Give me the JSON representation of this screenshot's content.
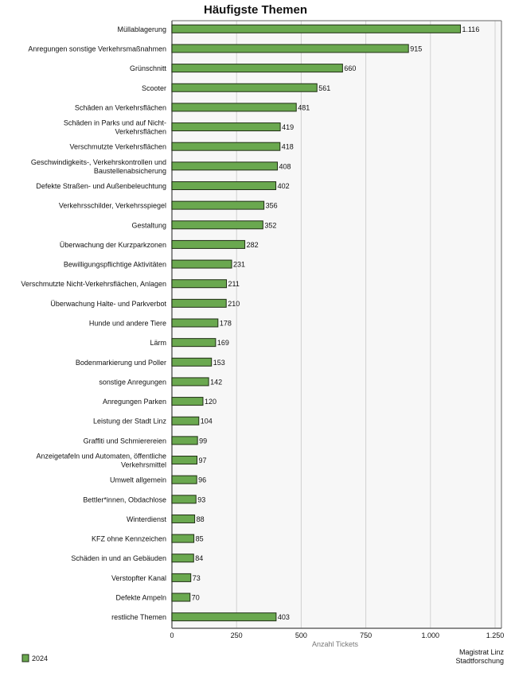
{
  "chart_data": {
    "type": "bar",
    "orientation": "horizontal",
    "title": "Häufigste Themen",
    "xlabel": "Anzahl Tickets",
    "ylabel": "",
    "xlim": [
      0,
      1250
    ],
    "xticks": [
      0,
      250,
      500,
      750,
      1000,
      1250
    ],
    "xtick_labels": [
      "0",
      "250",
      "500",
      "750",
      "1.000",
      "1.250"
    ],
    "grid": true,
    "legend_placement": "bottom-left",
    "color": "#6aa84f",
    "categories": [
      "Müllablagerung",
      "Anregungen sonstige Verkehrsmaßnahmen",
      "Grünschnitt",
      "Scooter",
      "Schäden an Verkehrsflächen",
      "Schäden in Parks und auf Nicht-|Verkehrsflächen",
      "Verschmutzte Verkehrsflächen",
      "Geschwindigkeits-, Verkehrskontrollen und|Baustellenabsicherung",
      "Defekte Straßen- und Außenbeleuchtung",
      "Verkehrsschilder, Verkehrsspiegel",
      "Gestaltung",
      "Überwachung der Kurzparkzonen",
      "Bewilligungspflichtige Aktivitäten",
      "Verschmutzte Nicht-Verkehrsflächen, Anlagen",
      "Überwachung Halte- und Parkverbot",
      "Hunde und andere Tiere",
      "Lärm",
      "Bodenmarkierung und Poller",
      "sonstige Anregungen",
      "Anregungen Parken",
      "Leistung der Stadt Linz",
      "Graffiti und Schmierereien",
      "Anzeigetafeln und Automaten, öffentliche|Verkehrsmittel",
      "Umwelt allgemein",
      "Bettler*innen, Obdachlose",
      "Winterdienst",
      "KFZ ohne Kennzeichen",
      "Schäden in und an Gebäuden",
      "Verstopfter Kanal",
      "Defekte Ampeln",
      "restliche Themen"
    ],
    "series": [
      {
        "name": "2024",
        "values": [
          1116,
          915,
          660,
          561,
          481,
          419,
          418,
          408,
          402,
          356,
          352,
          282,
          231,
          211,
          210,
          178,
          169,
          153,
          142,
          120,
          104,
          99,
          97,
          96,
          93,
          88,
          85,
          84,
          73,
          70,
          403
        ],
        "labels": [
          "1.116",
          "915",
          "660",
          "561",
          "481",
          "419",
          "418",
          "408",
          "402",
          "356",
          "352",
          "282",
          "231",
          "211",
          "210",
          "178",
          "169",
          "153",
          "142",
          "120",
          "104",
          "99",
          "97",
          "96",
          "93",
          "88",
          "85",
          "84",
          "73",
          "70",
          "403"
        ]
      }
    ],
    "source": [
      "Magistrat Linz",
      "Stadtforschung"
    ]
  }
}
